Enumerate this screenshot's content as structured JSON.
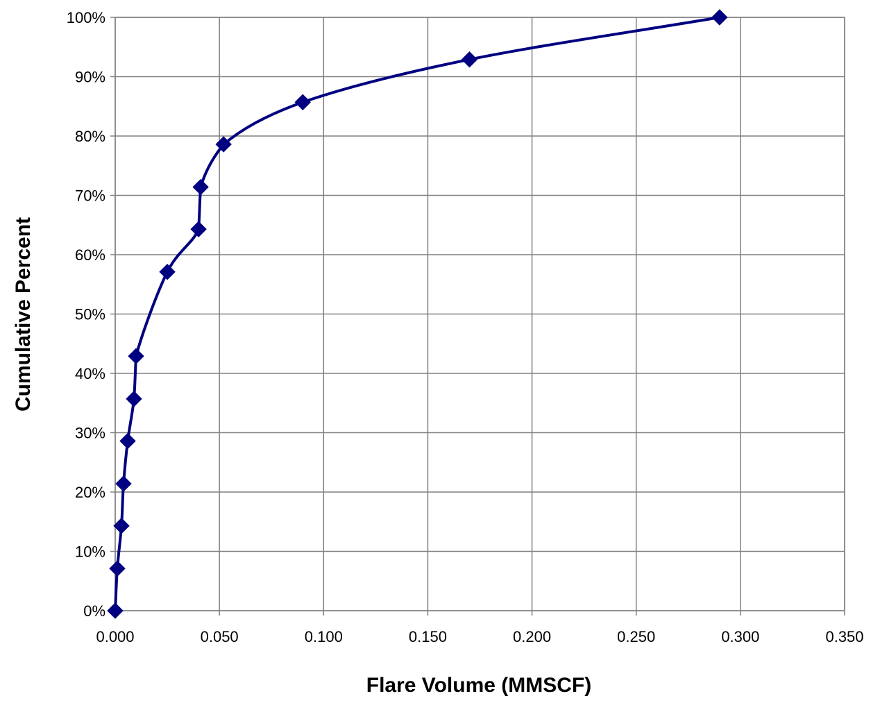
{
  "chart_data": {
    "type": "line",
    "title": "",
    "xlabel": "Flare Volume (MMSCF)",
    "ylabel": "Cumulative Percent",
    "xlim": [
      0,
      0.35
    ],
    "ylim": [
      0,
      100
    ],
    "x_ticks": [
      0,
      0.05,
      0.1,
      0.15,
      0.2,
      0.25,
      0.3,
      0.35
    ],
    "x_tick_labels": [
      "0.000",
      "0.050",
      "0.100",
      "0.150",
      "0.200",
      "0.250",
      "0.300",
      "0.350"
    ],
    "y_ticks": [
      0,
      10,
      20,
      30,
      40,
      50,
      60,
      70,
      80,
      90,
      100
    ],
    "y_tick_labels": [
      "0%",
      "10%",
      "20%",
      "30%",
      "40%",
      "50%",
      "60%",
      "70%",
      "80%",
      "90%",
      "100%"
    ],
    "grid": true,
    "legend": "none",
    "series": [
      {
        "color": "#000080",
        "marker": "diamond",
        "smooth": true,
        "points": [
          {
            "x": 0.0,
            "y": 0
          },
          {
            "x": 0.001,
            "y": 7.1
          },
          {
            "x": 0.003,
            "y": 14.3
          },
          {
            "x": 0.004,
            "y": 21.4
          },
          {
            "x": 0.006,
            "y": 28.6
          },
          {
            "x": 0.009,
            "y": 35.7
          },
          {
            "x": 0.01,
            "y": 42.9
          },
          {
            "x": 0.025,
            "y": 57.1
          },
          {
            "x": 0.04,
            "y": 64.3
          },
          {
            "x": 0.041,
            "y": 71.4
          },
          {
            "x": 0.052,
            "y": 78.6
          },
          {
            "x": 0.09,
            "y": 85.7
          },
          {
            "x": 0.17,
            "y": 92.9
          },
          {
            "x": 0.29,
            "y": 100
          }
        ]
      }
    ]
  }
}
